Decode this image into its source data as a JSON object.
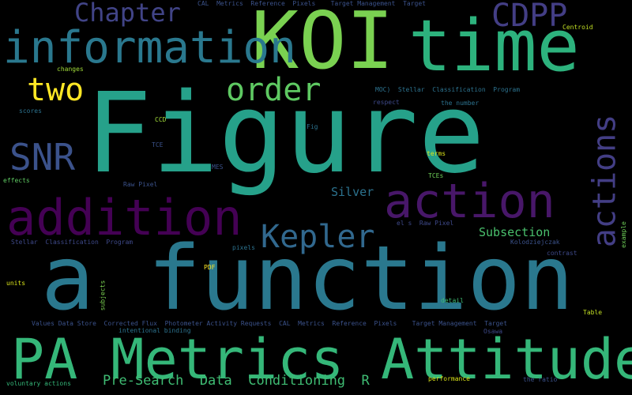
{
  "background": "#000000",
  "words": [
    {
      "text": "Figure",
      "color": "#26a18a"
    },
    {
      "text": "a function",
      "color": "#2a788e"
    },
    {
      "text": "KOI",
      "color": "#7ad151"
    },
    {
      "text": "time",
      "color": "#2db27d"
    },
    {
      "text": "information",
      "color": "#2a788e"
    },
    {
      "text": "PA Metrics",
      "color": "#35b779"
    },
    {
      "text": "Attitude",
      "color": "#35b779"
    },
    {
      "text": "addition",
      "color": "#440154"
    },
    {
      "text": "action",
      "color": "#481769"
    },
    {
      "text": "actions",
      "color": "#433e85"
    },
    {
      "text": "Kepler",
      "color": "#31688e"
    },
    {
      "text": "order",
      "color": "#5ec962"
    },
    {
      "text": "two",
      "color": "#fde725"
    },
    {
      "text": "SNR",
      "color": "#3b528b"
    },
    {
      "text": "CDPP",
      "color": "#433e85"
    },
    {
      "text": "Chapter",
      "color": "#414487"
    },
    {
      "text": "Pre-Search  Data  Conditioning  R",
      "color": "#3fbc73"
    },
    {
      "text": "Subsection",
      "color": "#4ac16d"
    },
    {
      "text": "Silver",
      "color": "#2c728e"
    },
    {
      "text": "CAL  Metrics  Reference  Pixels    Target Management  Target",
      "color": "#3b528b"
    },
    {
      "text": "Centroid",
      "color": "#c2df23"
    },
    {
      "text": "changes",
      "color": "#a0da39"
    },
    {
      "text": "MOC)  Stellar  Classification  Program",
      "color": "#2c728e"
    },
    {
      "text": "respect",
      "color": "#3e4989"
    },
    {
      "text": "the number",
      "color": "#2c728e"
    },
    {
      "text": "scores",
      "color": "#2c728e"
    },
    {
      "text": "CCD",
      "color": "#a0da39"
    },
    {
      "text": "Fig",
      "color": "#2c728e"
    },
    {
      "text": "TCE",
      "color": "#3b528b"
    },
    {
      "text": "terms",
      "color": "#d8e219"
    },
    {
      "text": "MES",
      "color": "#3b528b"
    },
    {
      "text": "effects",
      "color": "#5ec962"
    },
    {
      "text": "Raw Pixel",
      "color": "#3b528b"
    },
    {
      "text": "TCEs",
      "color": "#6ece58"
    },
    {
      "text": "el s  Raw Pixel",
      "color": "#3e4989"
    },
    {
      "text": "Stellar  Classification  Program",
      "color": "#3e4989"
    },
    {
      "text": "pixels",
      "color": "#2c728e"
    },
    {
      "text": "Kolodziejczak",
      "color": "#3b528b"
    },
    {
      "text": "example",
      "color": "#6ece58"
    },
    {
      "text": "contrast",
      "color": "#3e4989"
    },
    {
      "text": "PDF",
      "color": "#fde725"
    },
    {
      "text": "units",
      "color": "#d8e219"
    },
    {
      "text": "subjects",
      "color": "#7ad151"
    },
    {
      "text": "detail",
      "color": "#3fbc73"
    },
    {
      "text": "Values Data Store  Corrected Flux  Photometer Activity Requests  CAL  Metrics  Reference  Pixels    Target Management  Target",
      "color": "#3b528b"
    },
    {
      "text": "Table",
      "color": "#c2df23"
    },
    {
      "text": "intentional binding",
      "color": "#2c728e"
    },
    {
      "text": "Osawa",
      "color": "#3e4989"
    },
    {
      "text": "voluntary actions",
      "color": "#35b779"
    },
    {
      "text": "performance",
      "color": "#d8e219"
    },
    {
      "text": "the ratio",
      "color": "#3b528b"
    }
  ]
}
